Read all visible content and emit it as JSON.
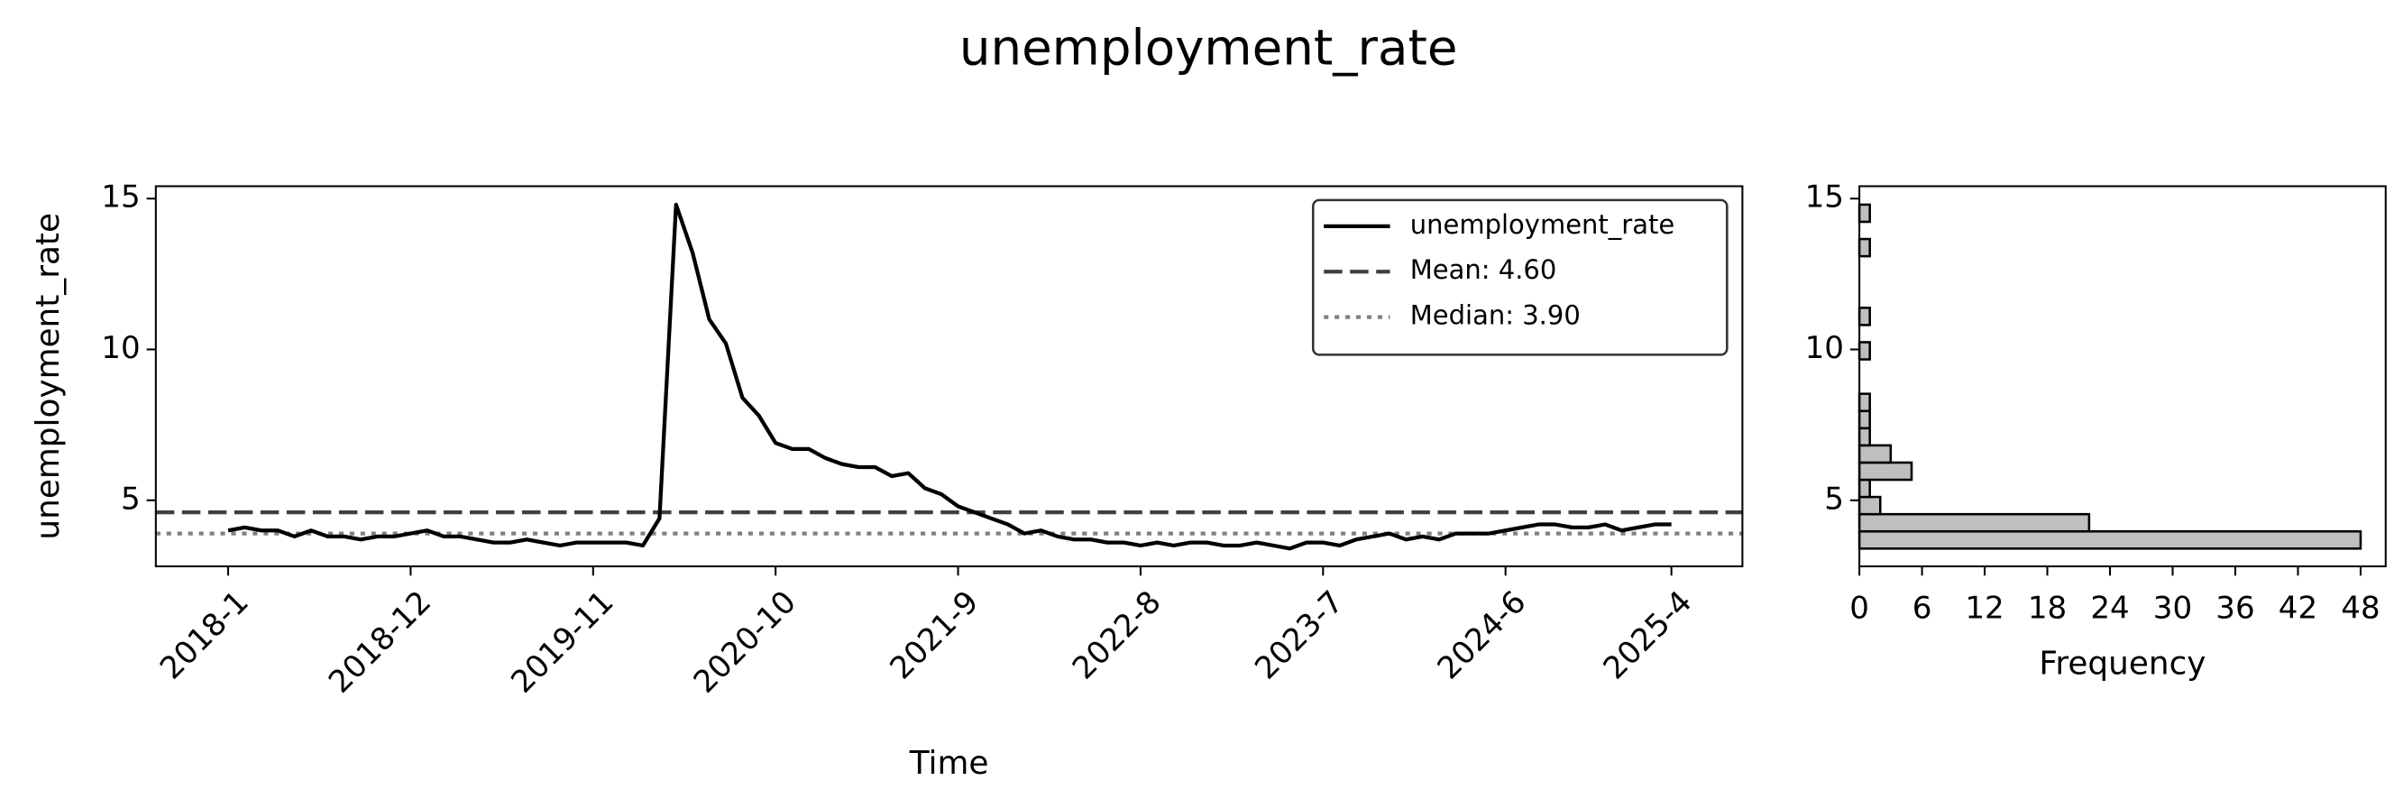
{
  "title": "unemployment_rate",
  "chart_data": [
    {
      "type": "line",
      "x_label": "Time",
      "y_label": "unemployment_rate",
      "categories": [
        "2018-1",
        null,
        null,
        null,
        null,
        null,
        null,
        null,
        null,
        null,
        null,
        "2018-12",
        null,
        null,
        null,
        null,
        null,
        null,
        null,
        null,
        null,
        null,
        "2019-11",
        null,
        null,
        null,
        null,
        null,
        null,
        null,
        null,
        null,
        null,
        "2020-10",
        null,
        null,
        null,
        null,
        null,
        null,
        null,
        null,
        null,
        null,
        "2021-9",
        null,
        null,
        null,
        null,
        null,
        null,
        null,
        null,
        null,
        null,
        "2022-8",
        null,
        null,
        null,
        null,
        null,
        null,
        null,
        null,
        null,
        null,
        "2023-7",
        null,
        null,
        null,
        null,
        null,
        null,
        null,
        null,
        null,
        null,
        "2024-6",
        null,
        null,
        null,
        null,
        null,
        null,
        null,
        null,
        null,
        "2025-4"
      ],
      "series": [
        {
          "name": "unemployment_rate",
          "color": "#000000",
          "values": [
            4.0,
            4.1,
            4.0,
            4.0,
            3.8,
            4.0,
            3.8,
            3.8,
            3.7,
            3.8,
            3.8,
            3.9,
            4.0,
            3.8,
            3.8,
            3.7,
            3.6,
            3.6,
            3.7,
            3.6,
            3.5,
            3.6,
            3.6,
            3.6,
            3.6,
            3.5,
            4.4,
            14.8,
            13.2,
            11.0,
            10.2,
            8.4,
            7.8,
            6.9,
            6.7,
            6.7,
            6.4,
            6.2,
            6.1,
            6.1,
            5.8,
            5.9,
            5.4,
            5.2,
            4.8,
            4.6,
            4.4,
            4.2,
            3.9,
            4.0,
            3.8,
            3.7,
            3.7,
            3.6,
            3.6,
            3.5,
            3.6,
            3.5,
            3.6,
            3.6,
            3.5,
            3.5,
            3.6,
            3.5,
            3.4,
            3.6,
            3.6,
            3.5,
            3.7,
            3.8,
            3.9,
            3.7,
            3.8,
            3.7,
            3.9,
            3.9,
            3.9,
            4.0,
            4.1,
            4.2,
            4.2,
            4.1,
            4.1,
            4.2,
            4.0,
            4.1,
            4.2,
            4.2
          ]
        }
      ],
      "hlines": [
        {
          "name": "Mean: 4.60",
          "value": 4.6,
          "color": "#404040",
          "style": "dashed"
        },
        {
          "name": "Median: 3.90",
          "value": 3.9,
          "color": "#808080",
          "style": "dotted"
        }
      ],
      "ylim": [
        2.81,
        15.41
      ],
      "yticks": [
        5,
        10,
        15
      ],
      "legend": "upper right"
    },
    {
      "type": "histogram",
      "orientation": "horizontal",
      "x_label": "Frequency",
      "bins": [
        3.4,
        3.97,
        4.54,
        5.11,
        5.68,
        6.25,
        6.82,
        7.39,
        7.96,
        8.53,
        9.1,
        9.67,
        10.24,
        10.81,
        11.38,
        11.95,
        12.52,
        13.09,
        13.66,
        14.23,
        14.8
      ],
      "counts": [
        48,
        22,
        2,
        1,
        5,
        3,
        1,
        1,
        1,
        0,
        0,
        1,
        0,
        1,
        0,
        0,
        0,
        1,
        0,
        1
      ],
      "color": "#bfbfbf",
      "edgecolor": "#000000",
      "xlim": [
        0,
        50.4
      ],
      "xticks": [
        0,
        6,
        12,
        18,
        24,
        30,
        36,
        42,
        48
      ],
      "ylim": [
        2.81,
        15.41
      ],
      "yticks": [
        5,
        10,
        15
      ]
    }
  ]
}
